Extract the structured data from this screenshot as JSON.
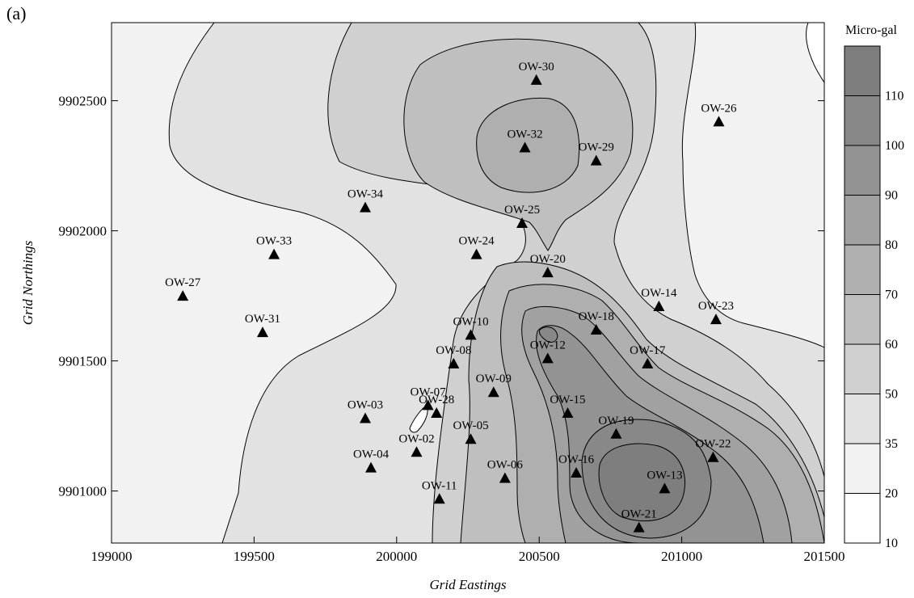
{
  "panel_label": "(a)",
  "colors": {
    "background": "#ffffff",
    "contour_line": "#000000",
    "marker": "#000000",
    "band_fills": [
      "#ffffff",
      "#f2f2f2",
      "#e2e2e2",
      "#d0d0d0",
      "#bfbfbf",
      "#afafaf",
      "#a1a1a1",
      "#939393",
      "#888888",
      "#7e7e7e"
    ]
  },
  "chart_data": {
    "type": "scatter",
    "subtype": "filled-contour map with station markers",
    "xlabel": "Grid Eastings",
    "ylabel": "Grid Northings",
    "xlim": [
      199000,
      201500
    ],
    "ylim": [
      9900800,
      9902800
    ],
    "xticks": [
      199000,
      199500,
      200000,
      200500,
      201000,
      201500
    ],
    "yticks": [
      9901000,
      9901500,
      9902000,
      9902500
    ],
    "grid": false,
    "marker": "triangle",
    "stations": [
      {
        "name": "OW-30",
        "x": 200490,
        "y": 9902580
      },
      {
        "name": "OW-26",
        "x": 201130,
        "y": 9902420
      },
      {
        "name": "OW-32",
        "x": 200450,
        "y": 9902320
      },
      {
        "name": "OW-29",
        "x": 200700,
        "y": 9902270
      },
      {
        "name": "OW-34",
        "x": 199890,
        "y": 9902090
      },
      {
        "name": "OW-25",
        "x": 200440,
        "y": 9902030
      },
      {
        "name": "OW-33",
        "x": 199570,
        "y": 9901910
      },
      {
        "name": "OW-24",
        "x": 200280,
        "y": 9901910
      },
      {
        "name": "OW-20",
        "x": 200530,
        "y": 9901840
      },
      {
        "name": "OW-27",
        "x": 199250,
        "y": 9901750
      },
      {
        "name": "OW-14",
        "x": 200920,
        "y": 9901710
      },
      {
        "name": "OW-23",
        "x": 201120,
        "y": 9901660
      },
      {
        "name": "OW-18",
        "x": 200700,
        "y": 9901620
      },
      {
        "name": "OW-31",
        "x": 199530,
        "y": 9901610
      },
      {
        "name": "OW-10",
        "x": 200260,
        "y": 9901600
      },
      {
        "name": "OW-12",
        "x": 200530,
        "y": 9901510
      },
      {
        "name": "OW-08",
        "x": 200200,
        "y": 9901490
      },
      {
        "name": "OW-17",
        "x": 200880,
        "y": 9901490
      },
      {
        "name": "OW-09",
        "x": 200340,
        "y": 9901380
      },
      {
        "name": "OW-07",
        "x": 200110,
        "y": 9901330
      },
      {
        "name": "OW-28",
        "x": 200140,
        "y": 9901300
      },
      {
        "name": "OW-15",
        "x": 200600,
        "y": 9901300
      },
      {
        "name": "OW-03",
        "x": 199890,
        "y": 9901280
      },
      {
        "name": "OW-19",
        "x": 200770,
        "y": 9901220
      },
      {
        "name": "OW-05",
        "x": 200260,
        "y": 9901200
      },
      {
        "name": "OW-02",
        "x": 200070,
        "y": 9901150
      },
      {
        "name": "OW-22",
        "x": 201110,
        "y": 9901130
      },
      {
        "name": "OW-04",
        "x": 199910,
        "y": 9901090
      },
      {
        "name": "OW-16",
        "x": 200630,
        "y": 9901070
      },
      {
        "name": "OW-06",
        "x": 200380,
        "y": 9901050
      },
      {
        "name": "OW-13",
        "x": 200940,
        "y": 9901010
      },
      {
        "name": "OW-11",
        "x": 200150,
        "y": 9900970
      },
      {
        "name": "OW-21",
        "x": 200850,
        "y": 9900860
      }
    ],
    "colorbar": {
      "title": "Micro-gal",
      "levels": [
        10,
        20,
        35,
        50,
        60,
        70,
        80,
        90,
        100,
        110
      ],
      "max": 120
    }
  }
}
